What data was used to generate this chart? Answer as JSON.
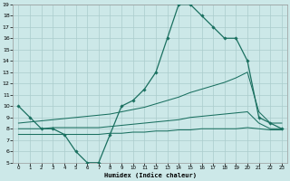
{
  "xlabel": "Humidex (Indice chaleur)",
  "bg_color": "#cce8e8",
  "grid_color": "#aacccc",
  "line_color": "#1a7060",
  "xlim": [
    -0.5,
    23.5
  ],
  "ylim": [
    5,
    19
  ],
  "xticks": [
    0,
    1,
    2,
    3,
    4,
    5,
    6,
    7,
    8,
    9,
    10,
    11,
    12,
    13,
    14,
    15,
    16,
    17,
    18,
    19,
    20,
    21,
    22,
    23
  ],
  "yticks": [
    5,
    6,
    7,
    8,
    9,
    10,
    11,
    12,
    13,
    14,
    15,
    16,
    17,
    18,
    19
  ],
  "line1_x": [
    0,
    1,
    2,
    3,
    4,
    5,
    6,
    7,
    8,
    9,
    10,
    11,
    12,
    13,
    14,
    15,
    16,
    17,
    18,
    19,
    20,
    21,
    22,
    23
  ],
  "line1_y": [
    10,
    9,
    8,
    8,
    7.5,
    6,
    5,
    5,
    7.5,
    10,
    10.5,
    11.5,
    13,
    16,
    19,
    19,
    18,
    17,
    16,
    16,
    14,
    9,
    8.5,
    8
  ],
  "line2_x": [
    0,
    1,
    2,
    3,
    4,
    5,
    6,
    7,
    8,
    9,
    10,
    11,
    12,
    13,
    14,
    15,
    16,
    17,
    18,
    19,
    20,
    21,
    22,
    23
  ],
  "line2_y": [
    8.5,
    8.6,
    8.7,
    8.8,
    8.9,
    9.0,
    9.1,
    9.2,
    9.3,
    9.5,
    9.7,
    9.9,
    10.2,
    10.5,
    10.8,
    11.2,
    11.5,
    11.8,
    12.1,
    12.5,
    13.0,
    9.5,
    8.5,
    8.5
  ],
  "line3_x": [
    0,
    1,
    2,
    3,
    4,
    5,
    6,
    7,
    8,
    9,
    10,
    11,
    12,
    13,
    14,
    15,
    16,
    17,
    18,
    19,
    20,
    21,
    22,
    23
  ],
  "line3_y": [
    8.0,
    8.0,
    8.0,
    8.1,
    8.1,
    8.1,
    8.1,
    8.1,
    8.2,
    8.3,
    8.4,
    8.5,
    8.6,
    8.7,
    8.8,
    9.0,
    9.1,
    9.2,
    9.3,
    9.4,
    9.5,
    8.5,
    8.0,
    8.0
  ],
  "line4_x": [
    0,
    1,
    2,
    3,
    4,
    5,
    6,
    7,
    8,
    9,
    10,
    11,
    12,
    13,
    14,
    15,
    16,
    17,
    18,
    19,
    20,
    21,
    22,
    23
  ],
  "line4_y": [
    7.5,
    7.5,
    7.5,
    7.5,
    7.5,
    7.5,
    7.5,
    7.5,
    7.6,
    7.6,
    7.7,
    7.7,
    7.8,
    7.8,
    7.9,
    7.9,
    8.0,
    8.0,
    8.0,
    8.0,
    8.1,
    8.0,
    7.9,
    7.9
  ]
}
